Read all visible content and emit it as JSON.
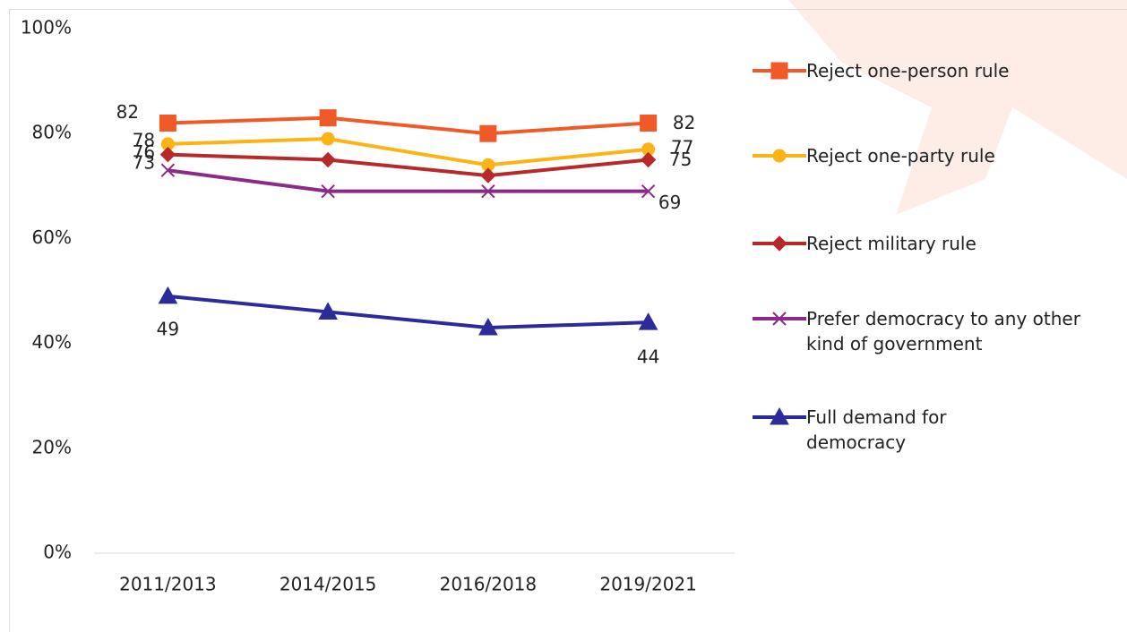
{
  "chart_data": {
    "type": "line",
    "categories": [
      "2011/2013",
      "2014/2015",
      "2016/2018",
      "2019/2021"
    ],
    "series": [
      {
        "name": "Reject one-person rule",
        "color": "#f05a28",
        "marker": "square",
        "values": [
          82,
          83,
          80,
          82
        ]
      },
      {
        "name": "Reject one-party rule",
        "color": "#fcb315",
        "marker": "circle",
        "values": [
          78,
          79,
          74,
          77
        ]
      },
      {
        "name": "Reject military rule",
        "color": "#b72a2a",
        "marker": "diamond",
        "values": [
          76,
          75,
          72,
          75
        ]
      },
      {
        "name": "Prefer democracy to any other kind of government",
        "color": "#8b2b87",
        "marker": "x",
        "values": [
          73,
          69,
          69,
          69
        ]
      },
      {
        "name": "Full demand for democracy",
        "color": "#2b2b9b",
        "marker": "triangle",
        "values": [
          49,
          46,
          43,
          44
        ]
      }
    ],
    "ylim": [
      0,
      100
    ],
    "yticks": [
      {
        "value": 0,
        "label": "0%"
      },
      {
        "value": 20,
        "label": "20%"
      },
      {
        "value": 40,
        "label": "40%"
      },
      {
        "value": 60,
        "label": "60%"
      },
      {
        "value": 80,
        "label": "80%"
      },
      {
        "value": 100,
        "label": "100%"
      }
    ],
    "grid": false,
    "legend": "right"
  }
}
